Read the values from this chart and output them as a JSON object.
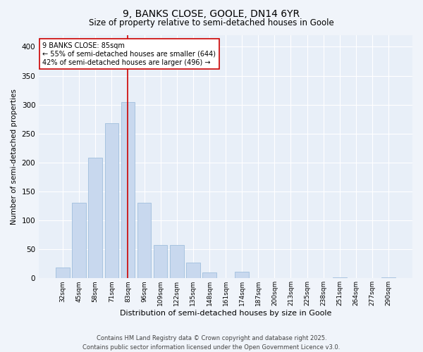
{
  "title": "9, BANKS CLOSE, GOOLE, DN14 6YR",
  "subtitle": "Size of property relative to semi-detached houses in Goole",
  "xlabel": "Distribution of semi-detached houses by size in Goole",
  "ylabel": "Number of semi-detached properties",
  "categories": [
    "32sqm",
    "45sqm",
    "58sqm",
    "71sqm",
    "83sqm",
    "96sqm",
    "109sqm",
    "122sqm",
    "135sqm",
    "148sqm",
    "161sqm",
    "174sqm",
    "187sqm",
    "200sqm",
    "213sqm",
    "225sqm",
    "238sqm",
    "251sqm",
    "264sqm",
    "277sqm",
    "290sqm"
  ],
  "values": [
    18,
    130,
    208,
    268,
    304,
    130,
    57,
    57,
    27,
    10,
    0,
    11,
    0,
    0,
    0,
    0,
    0,
    2,
    0,
    0,
    2
  ],
  "bar_color": "#c8d8ee",
  "bar_edge_color": "#a0bedd",
  "vline_x": 4,
  "vline_color": "#cc0000",
  "annotation_text": "9 BANKS CLOSE: 85sqm\n← 55% of semi-detached houses are smaller (644)\n42% of semi-detached houses are larger (496) →",
  "annotation_box_color": "#ffffff",
  "annotation_box_edge": "#cc0000",
  "ylim": [
    0,
    420
  ],
  "yticks": [
    0,
    50,
    100,
    150,
    200,
    250,
    300,
    350,
    400
  ],
  "footnote": "Contains HM Land Registry data © Crown copyright and database right 2025.\nContains public sector information licensed under the Open Government Licence v3.0.",
  "bg_color": "#f0f4fa",
  "plot_bg_color": "#e8eff8",
  "grid_color": "#ffffff",
  "title_fontsize": 10,
  "subtitle_fontsize": 8.5,
  "xlabel_fontsize": 8,
  "ylabel_fontsize": 7.5,
  "xtick_fontsize": 6.5,
  "ytick_fontsize": 7.5,
  "annotation_fontsize": 7,
  "footnote_fontsize": 6
}
